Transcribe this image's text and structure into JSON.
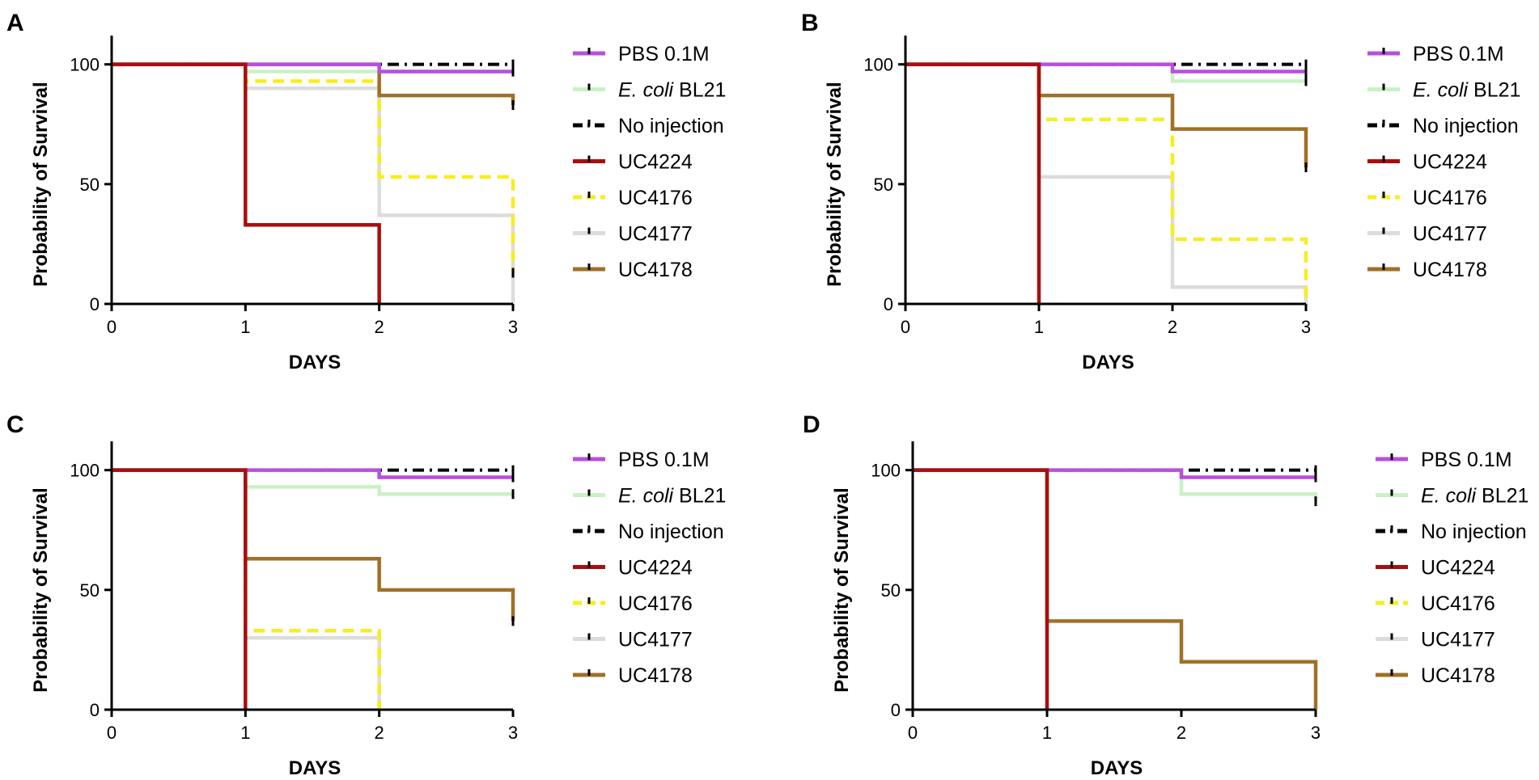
{
  "colors": {
    "pbs": "#b84fe0",
    "ecoli": "#c9f2c4",
    "noinj": "#000000",
    "uc4224": "#a70f0f",
    "uc4176": "#f6ee1f",
    "uc4177": "#dcdcdc",
    "uc4178": "#a07027"
  },
  "legend": [
    {
      "key": "pbs",
      "label": "PBS 0.1M",
      "dash": "solid",
      "italic_prefix": ""
    },
    {
      "key": "ecoli",
      "label": "E. coli BL21",
      "dash": "solid",
      "italic_prefix": "E. coli"
    },
    {
      "key": "noinj",
      "label": "No injection",
      "dash": "dashdot",
      "italic_prefix": ""
    },
    {
      "key": "uc4224",
      "label": "UC4224",
      "dash": "solid",
      "italic_prefix": ""
    },
    {
      "key": "uc4176",
      "label": "UC4176",
      "dash": "dashed",
      "italic_prefix": ""
    },
    {
      "key": "uc4177",
      "label": "UC4177",
      "dash": "solid",
      "italic_prefix": ""
    },
    {
      "key": "uc4178",
      "label": "UC4178",
      "dash": "solid",
      "italic_prefix": ""
    }
  ],
  "chart_data": [
    {
      "panel": "A",
      "type": "line",
      "step": true,
      "xlabel": "DAYS",
      "ylabel": "Probability of Survival",
      "xlim": [
        0,
        3
      ],
      "ylim": [
        0,
        110
      ],
      "xticks": [
        "0",
        "1",
        "2",
        "3"
      ],
      "yticks": [
        "0",
        "50",
        "100"
      ],
      "series": [
        {
          "name": "UC4177",
          "key": "uc4177",
          "x": [
            0,
            1,
            2,
            3
          ],
          "values": [
            100,
            90,
            37,
            0
          ]
        },
        {
          "name": "UC4176",
          "key": "uc4176",
          "x": [
            0,
            1,
            2,
            3
          ],
          "values": [
            100,
            93,
            53,
            13
          ]
        },
        {
          "name": "E. coli BL21",
          "key": "ecoli",
          "x": [
            0,
            1,
            2,
            3
          ],
          "values": [
            100,
            97,
            97,
            97
          ]
        },
        {
          "name": "No injection",
          "key": "noinj",
          "x": [
            0,
            3
          ],
          "values": [
            100,
            100
          ]
        },
        {
          "name": "UC4178",
          "key": "uc4178",
          "x": [
            0,
            1,
            2,
            3
          ],
          "values": [
            100,
            100,
            87,
            83
          ]
        },
        {
          "name": "PBS 0.1M",
          "key": "pbs",
          "x": [
            0,
            2,
            3
          ],
          "values": [
            100,
            97,
            97
          ]
        },
        {
          "name": "UC4224",
          "key": "uc4224",
          "x": [
            0,
            1,
            2
          ],
          "values": [
            100,
            33,
            0
          ]
        }
      ]
    },
    {
      "panel": "B",
      "type": "line",
      "step": true,
      "xlabel": "DAYS",
      "ylabel": "Probability of Survival",
      "xlim": [
        0,
        3
      ],
      "ylim": [
        0,
        110
      ],
      "xticks": [
        "0",
        "1",
        "2",
        "3"
      ],
      "yticks": [
        "0",
        "50",
        "100"
      ],
      "series": [
        {
          "name": "UC4177",
          "key": "uc4177",
          "x": [
            0,
            1,
            2,
            3
          ],
          "values": [
            100,
            53,
            7,
            0
          ]
        },
        {
          "name": "UC4176",
          "key": "uc4176",
          "x": [
            0,
            1,
            2,
            3
          ],
          "values": [
            100,
            77,
            27,
            0
          ]
        },
        {
          "name": "E. coli BL21",
          "key": "ecoli",
          "x": [
            0,
            2,
            3
          ],
          "values": [
            100,
            93,
            93
          ]
        },
        {
          "name": "No injection",
          "key": "noinj",
          "x": [
            0,
            3
          ],
          "values": [
            100,
            100
          ]
        },
        {
          "name": "UC4178",
          "key": "uc4178",
          "x": [
            0,
            1,
            2,
            3
          ],
          "values": [
            100,
            87,
            73,
            57
          ]
        },
        {
          "name": "PBS 0.1M",
          "key": "pbs",
          "x": [
            0,
            2,
            3
          ],
          "values": [
            100,
            97,
            97
          ]
        },
        {
          "name": "UC4224",
          "key": "uc4224",
          "x": [
            0,
            1
          ],
          "values": [
            100,
            0
          ]
        }
      ]
    },
    {
      "panel": "C",
      "type": "line",
      "step": true,
      "xlabel": "DAYS",
      "ylabel": "Probability of Survival",
      "xlim": [
        0,
        3
      ],
      "ylim": [
        0,
        110
      ],
      "xticks": [
        "0",
        "1",
        "2",
        "3"
      ],
      "yticks": [
        "0",
        "50",
        "100"
      ],
      "series": [
        {
          "name": "UC4177",
          "key": "uc4177",
          "x": [
            0,
            1,
            2
          ],
          "values": [
            100,
            30,
            0
          ]
        },
        {
          "name": "UC4176",
          "key": "uc4176",
          "x": [
            0,
            1,
            2
          ],
          "values": [
            100,
            33,
            0
          ]
        },
        {
          "name": "E. coli BL21",
          "key": "ecoli",
          "x": [
            0,
            1,
            2,
            3
          ],
          "values": [
            100,
            93,
            90,
            90
          ]
        },
        {
          "name": "No injection",
          "key": "noinj",
          "x": [
            0,
            3
          ],
          "values": [
            100,
            100
          ]
        },
        {
          "name": "UC4178",
          "key": "uc4178",
          "x": [
            0,
            1,
            2,
            3
          ],
          "values": [
            100,
            63,
            50,
            37
          ]
        },
        {
          "name": "PBS 0.1M",
          "key": "pbs",
          "x": [
            0,
            2,
            3
          ],
          "values": [
            100,
            97,
            97
          ]
        },
        {
          "name": "UC4224",
          "key": "uc4224",
          "x": [
            0,
            1
          ],
          "values": [
            100,
            0
          ]
        }
      ]
    },
    {
      "panel": "D",
      "type": "line",
      "step": true,
      "xlabel": "DAYS",
      "ylabel": "Probability of Survival",
      "xlim": [
        0,
        3
      ],
      "ylim": [
        0,
        110
      ],
      "xticks": [
        "0",
        "1",
        "2",
        "3"
      ],
      "yticks": [
        "0",
        "50",
        "100"
      ],
      "series": [
        {
          "name": "E. coli BL21",
          "key": "ecoli",
          "x": [
            0,
            2,
            3
          ],
          "values": [
            100,
            90,
            87
          ]
        },
        {
          "name": "No injection",
          "key": "noinj",
          "x": [
            0,
            3
          ],
          "values": [
            100,
            100
          ]
        },
        {
          "name": "UC4178",
          "key": "uc4178",
          "x": [
            0,
            1,
            2,
            3
          ],
          "values": [
            100,
            37,
            20,
            0
          ]
        },
        {
          "name": "PBS 0.1M",
          "key": "pbs",
          "x": [
            0,
            2,
            3
          ],
          "values": [
            100,
            97,
            97
          ]
        },
        {
          "name": "UC4224",
          "key": "uc4224",
          "x": [
            0,
            1
          ],
          "values": [
            100,
            0
          ]
        }
      ]
    }
  ]
}
